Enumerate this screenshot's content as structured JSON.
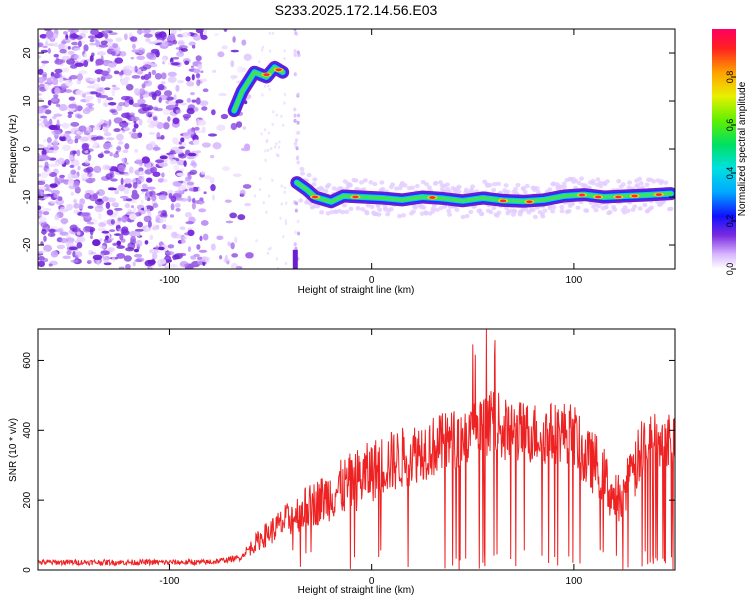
{
  "title": "S233.2025.172.14.56.E03",
  "chart_data": [
    {
      "type": "heatmap",
      "xlabel": "Height of straight line (km)",
      "ylabel": "Frequency (Hz)",
      "xlim": [
        -165,
        150
      ],
      "ylim": [
        -25,
        25
      ],
      "x_ticks": [
        -100,
        0,
        100
      ],
      "y_ticks": [
        -20,
        -10,
        0,
        10,
        20
      ],
      "colorbar": {
        "label": "Normalized spectral amplitude",
        "range": [
          0,
          1
        ],
        "ticks": [
          0,
          0.2,
          0.4,
          0.6,
          0.8
        ]
      },
      "colors": {
        "noise": "#7a2be0",
        "band_core": "#ff2a2a",
        "band_mid": "#3fe05a",
        "band_edge": "#2b2bff"
      },
      "trace": {
        "description_points": [
          [
            -68,
            8
          ],
          [
            -64,
            12
          ],
          [
            -58,
            16
          ],
          [
            -52,
            15
          ],
          [
            -48,
            17
          ],
          [
            -44,
            16
          ],
          [
            -37,
            -7
          ],
          [
            -32,
            -8.5
          ],
          [
            -28,
            -10
          ],
          [
            -20,
            -11
          ],
          [
            -14,
            -9.8
          ],
          [
            -5,
            -10
          ],
          [
            5,
            -10.2
          ],
          [
            15,
            -10.6
          ],
          [
            25,
            -10
          ],
          [
            35,
            -10.3
          ],
          [
            45,
            -10.8
          ],
          [
            55,
            -10.2
          ],
          [
            65,
            -10.7
          ],
          [
            75,
            -10.9
          ],
          [
            85,
            -10.6
          ],
          [
            95,
            -9.8
          ],
          [
            105,
            -9.5
          ],
          [
            115,
            -10
          ],
          [
            125,
            -9.8
          ],
          [
            135,
            -9.6
          ],
          [
            148,
            -9.3
          ]
        ]
      }
    },
    {
      "type": "line",
      "xlabel": "Height of straight line (km)",
      "ylabel": "SNR (10 * v/v)",
      "xlim": [
        -165,
        150
      ],
      "ylim": [
        0,
        690
      ],
      "x_ticks": [
        -100,
        0,
        100
      ],
      "y_ticks": [
        0,
        200,
        400,
        600
      ],
      "line_color": "#ee2222",
      "envelope": {
        "x": [
          -165,
          -120,
          -80,
          -65,
          -55,
          -45,
          -35,
          -25,
          -15,
          -5,
          5,
          15,
          25,
          35,
          45,
          55,
          60,
          65,
          75,
          85,
          95,
          100,
          105,
          112,
          120,
          128,
          135,
          142,
          150
        ],
        "mean": [
          22,
          22,
          22,
          35,
          90,
          130,
          170,
          200,
          235,
          265,
          300,
          320,
          345,
          360,
          380,
          400,
          440,
          400,
          395,
          390,
          395,
          390,
          320,
          300,
          200,
          250,
          370,
          385,
          380
        ]
      }
    }
  ]
}
